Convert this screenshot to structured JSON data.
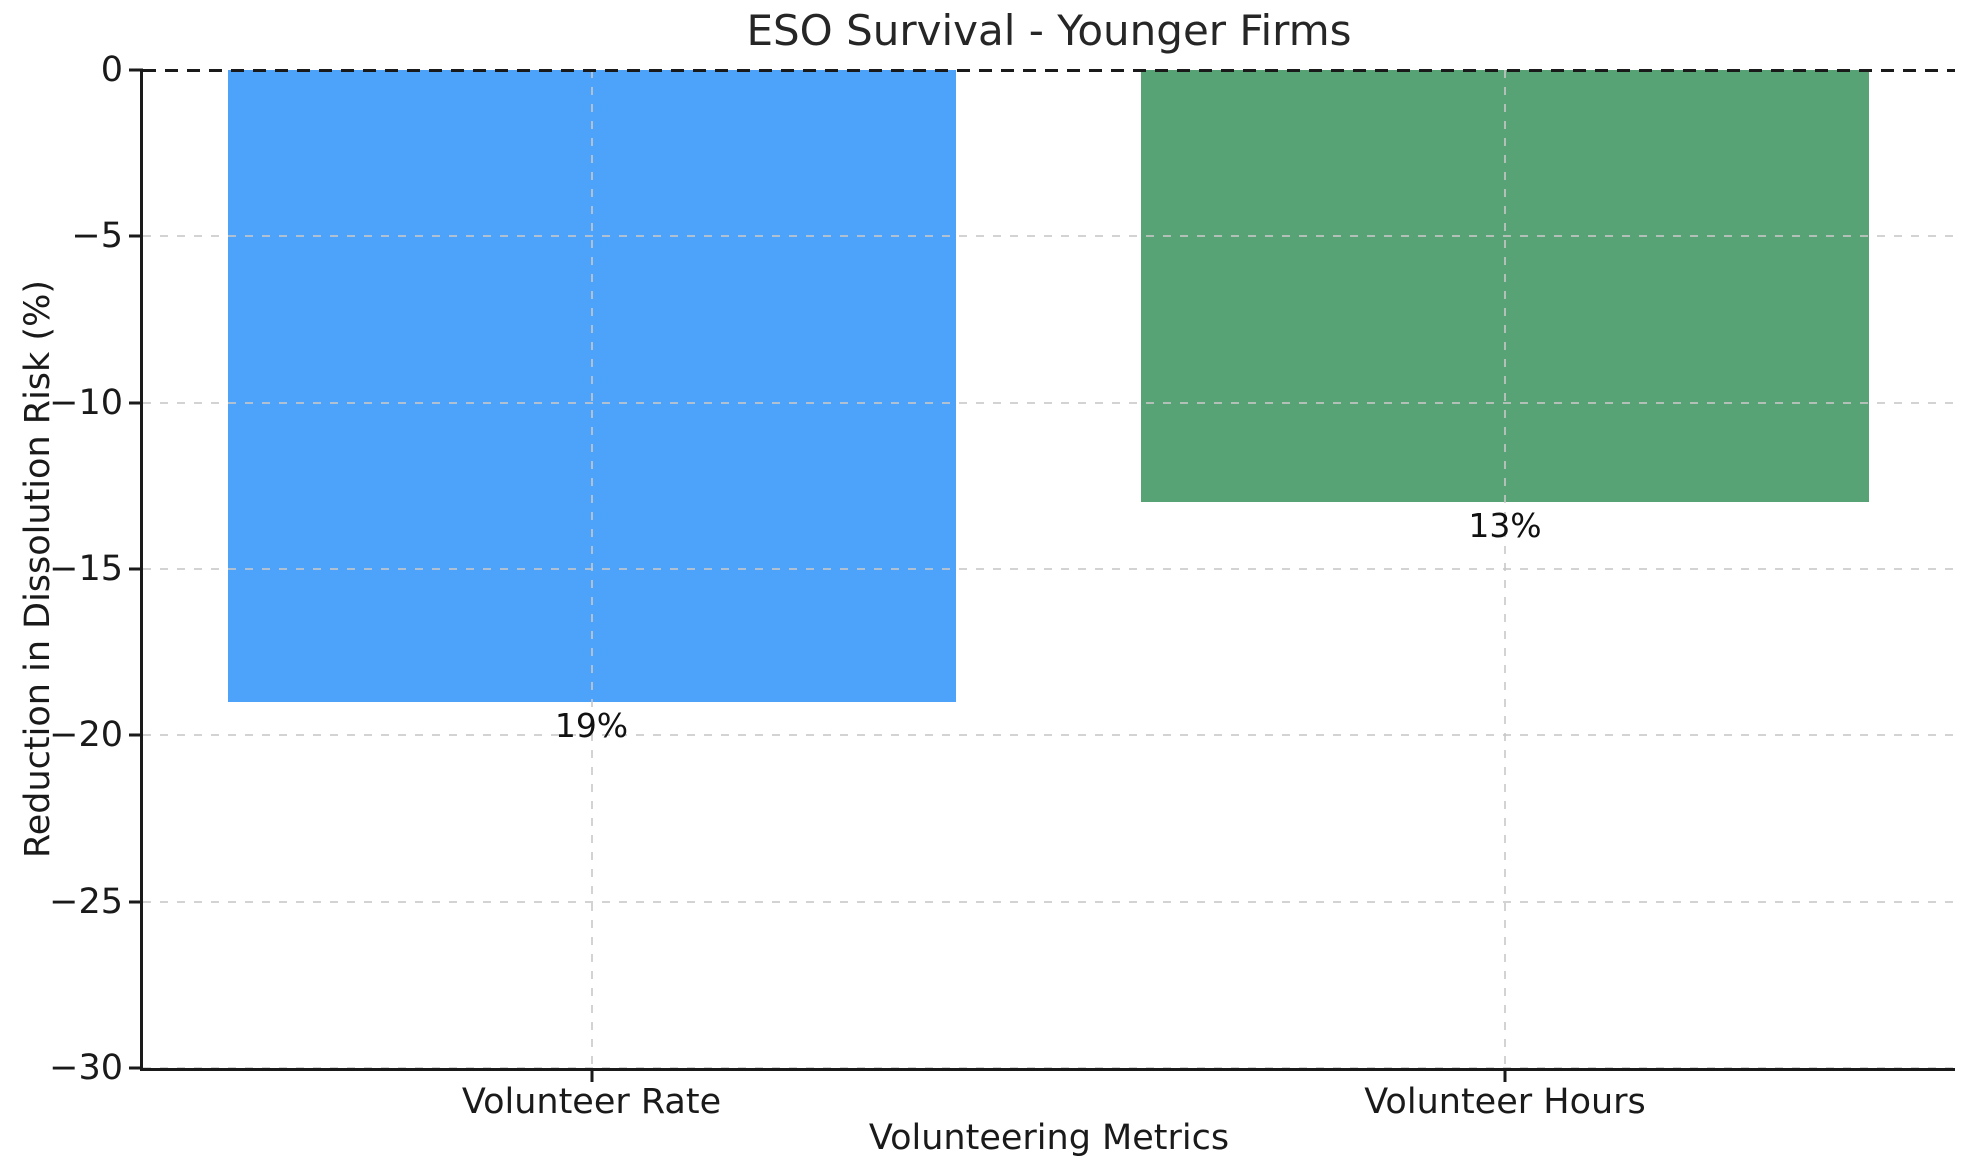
{
  "figure": {
    "background": "#ffffff"
  },
  "chart_data": {
    "type": "bar",
    "title": "ESO Survival - Younger Firms",
    "xlabel": "Volunteering Metrics",
    "ylabel": "Reduction in Dissolution Risk (%)",
    "categories": [
      "Volunteer Rate",
      "Volunteer Hours"
    ],
    "values": [
      -19,
      -13
    ],
    "bar_labels": [
      "19%",
      "13%"
    ],
    "bar_colors": [
      "#4DA3FA",
      "#58A376"
    ],
    "ylim": [
      -30,
      0
    ],
    "yticks": [
      0,
      -5,
      -10,
      -15,
      -20,
      -25,
      -30
    ],
    "ytick_labels": [
      "0",
      "−5",
      "−10",
      "−15",
      "−20",
      "−25",
      "−30"
    ],
    "grid": "dashed, drawn over bars",
    "legend": "none",
    "axis_color": "#1a1a1a",
    "grid_color": "#c8c8c8",
    "zero_line_color": "#1a1a1a"
  }
}
